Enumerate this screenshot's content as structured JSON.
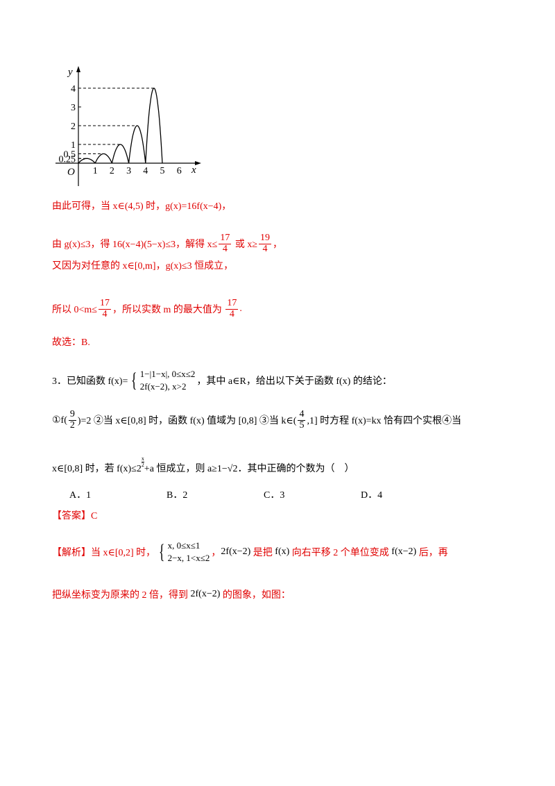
{
  "figure": {
    "y_label": "y",
    "x_label": "x",
    "origin": "O",
    "y_ticks": [
      "4",
      "3",
      "2",
      "1",
      "0.5",
      "0.25"
    ],
    "x_ticks": [
      "1",
      "2",
      "3",
      "4",
      "5",
      "6"
    ]
  },
  "lines": [
    {
      "color": "red",
      "segments": [
        {
          "text": "由此可得，当 x∈(4,5) 时，g(x)=16f(x−4)，"
        }
      ]
    },
    {
      "color": "red",
      "segments": [
        {
          "text": "由 g(x)≤3，得 16(x−4)(5−x)≤3，解得 x≤"
        },
        {
          "frac": [
            "17",
            "4"
          ]
        },
        {
          "text": " 或 x≥"
        },
        {
          "frac": [
            "19",
            "4"
          ]
        },
        {
          "text": "，"
        }
      ]
    },
    {
      "color": "red",
      "segments": [
        {
          "text": "又因为对任意的 x∈[0,m]，g(x)≤3 恒成立，"
        }
      ]
    },
    {
      "color": "red",
      "segments": [
        {
          "text": "所以 0<m≤"
        },
        {
          "frac": [
            "17",
            "4"
          ]
        },
        {
          "text": "，所以实数 m 的最大值为 "
        },
        {
          "frac": [
            "17",
            "4"
          ]
        },
        {
          "text": "."
        }
      ]
    },
    {
      "color": "red",
      "segments": [
        {
          "text": "故选：B."
        }
      ]
    },
    {
      "color": "black",
      "segments": [
        {
          "text": "3．已知函数 f(x)="
        },
        {
          "cases": [
            "1−|1−x|, 0≤x≤2",
            "2f(x−2), x>2"
          ]
        },
        {
          "text": "，其中 a∈R，给出以下关于函数 f(x) 的结论："
        }
      ]
    },
    {
      "color": "black",
      "segments": [
        {
          "text": "①f("
        },
        {
          "frac": [
            "9",
            "2"
          ]
        },
        {
          "text": ")=2 ②当 x∈[0,8] 时，函数 f(x) 值域为 [0,8] ③当 k∈("
        },
        {
          "frac": [
            "4",
            "5"
          ]
        },
        {
          "text": ",1] 时方程 f(x)=kx 恰有四个实根④当"
        }
      ]
    },
    {
      "color": "black",
      "segments": [
        {
          "text": "x∈[0,8] 时，若 f(x)≤2"
        },
        {
          "sup_frac": [
            "x",
            "2"
          ]
        },
        {
          "text": "+a 恒成立，则 a≥1−√2．其中正确的个数为（　）"
        }
      ]
    },
    {
      "color": "black",
      "options": [
        "A．1",
        "B．2",
        "C．3",
        "D．4"
      ]
    },
    {
      "color": "red",
      "segments": [
        {
          "text": "【答案】C"
        }
      ]
    },
    {
      "color": "red",
      "segments": [
        {
          "text": "【解析】当 x∈[0,2] 时，"
        },
        {
          "cases": [
            "x, 0≤x≤1",
            "2−x, 1<x≤2"
          ],
          "color": "black"
        },
        {
          "text": "，"
        },
        {
          "text": "2f(x−2)",
          "color": "black"
        },
        {
          "text": " 是把 "
        },
        {
          "text": "f(x)",
          "color": "black"
        },
        {
          "text": " 向右平移 2 个单位变成 "
        },
        {
          "text": "f(x−2)",
          "color": "black"
        },
        {
          "text": " 后，再"
        }
      ]
    },
    {
      "color": "red",
      "segments": [
        {
          "text": "把纵坐标变为原来的 2 倍，得到 "
        },
        {
          "text": "2f(x−2)",
          "color": "black"
        },
        {
          "text": " 的图象，如图："
        }
      ]
    }
  ]
}
